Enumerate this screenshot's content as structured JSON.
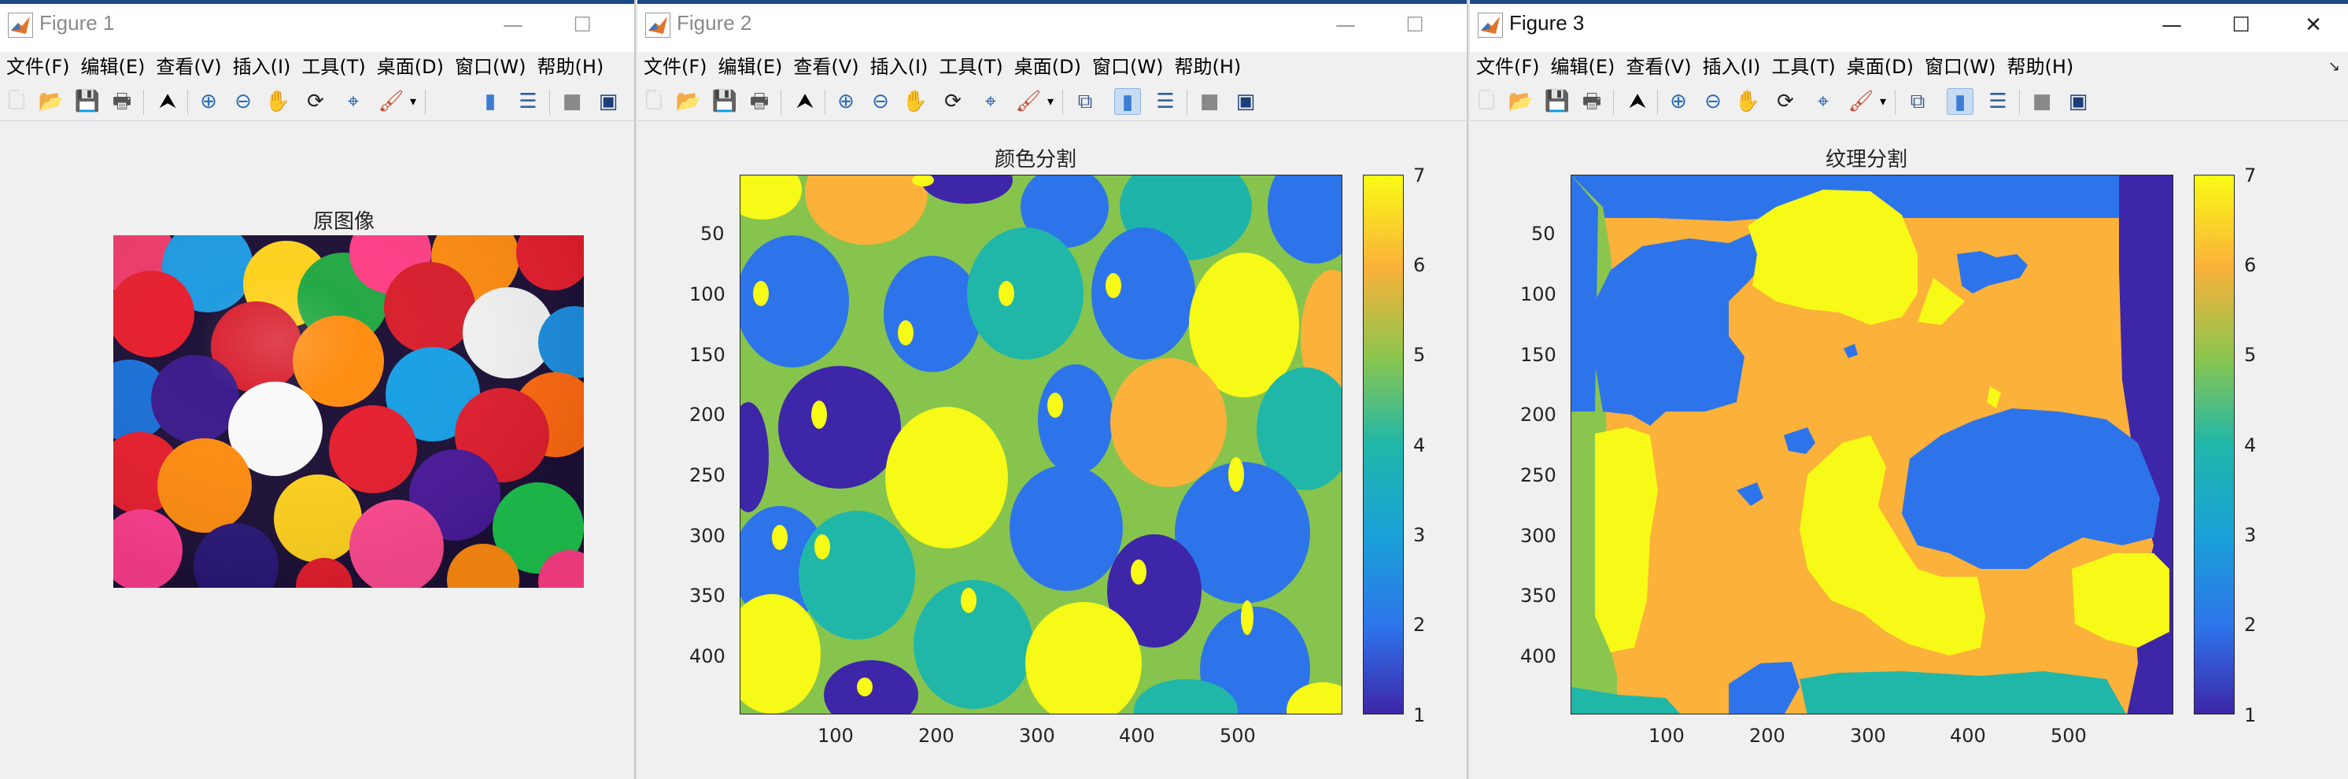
{
  "windows": [
    {
      "title": "Figure 1",
      "menu": [
        "文件(F)",
        "编辑(E)",
        "查看(V)",
        "插入(I)",
        "工具(T)",
        "桌面(D)",
        "窗口(W)",
        "帮助(H)"
      ],
      "axes_title": "原图像"
    },
    {
      "title": "Figure 2",
      "menu": [
        "文件(F)",
        "编辑(E)",
        "查看(V)",
        "插入(I)",
        "工具(T)",
        "桌面(D)",
        "窗口(W)",
        "帮助(H)"
      ],
      "axes_title": "颜色分割",
      "yticks": [
        "50",
        "100",
        "150",
        "200",
        "250",
        "300",
        "350",
        "400"
      ],
      "xticks": [
        "100",
        "200",
        "300",
        "400",
        "500"
      ],
      "colorbar_ticks": [
        "1",
        "2",
        "3",
        "4",
        "5",
        "6",
        "7"
      ]
    },
    {
      "title": "Figure 3",
      "menu": [
        "文件(F)",
        "编辑(E)",
        "查看(V)",
        "插入(I)",
        "工具(T)",
        "桌面(D)",
        "窗口(W)",
        "帮助(H)"
      ],
      "axes_title": "纹理分割",
      "yticks": [
        "50",
        "100",
        "150",
        "200",
        "250",
        "300",
        "350",
        "400"
      ],
      "xticks": [
        "100",
        "200",
        "300",
        "400",
        "500"
      ],
      "colorbar_ticks": [
        "1",
        "2",
        "3",
        "4",
        "5",
        "6",
        "7"
      ]
    }
  ],
  "window_controls": [
    "minimize",
    "maximize",
    "close"
  ],
  "toolbar_icons": [
    "new-figure-icon",
    "open-file-icon",
    "save-icon",
    "print-icon",
    "edit-plot-arrow-icon",
    "zoom-in-icon",
    "zoom-out-icon",
    "pan-hand-icon",
    "rotate-3d-icon",
    "data-cursor-icon",
    "brush-icon",
    "brush-dropdown-icon",
    "link-plot-icon",
    "colorbar-icon",
    "legend-icon",
    "hide-plot-tools-icon",
    "show-plot-tools-icon"
  ],
  "colors": {
    "parula_1": "#3e26a8",
    "parula_2": "#2d74ea",
    "parula_3": "#1aa1d8",
    "parula_4": "#20b7a9",
    "parula_5": "#8ac64e",
    "parula_6": "#fbb13a",
    "parula_7": "#f9fb15"
  }
}
